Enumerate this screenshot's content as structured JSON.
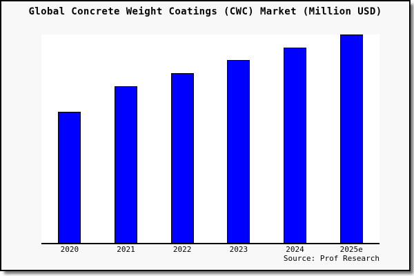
{
  "title": "Global Concrete Weight Coatings (CWC) Market (Million USD)",
  "source_note": "Source: Prof Research",
  "colors": {
    "frame_background": "#f8f8f8",
    "plot_background": "#ffffff",
    "bar_fill": "#0000ff",
    "bar_border": "#000000",
    "axis": "#000000",
    "text": "#000000"
  },
  "chart_data": {
    "type": "bar",
    "title": "Global Concrete Weight Coatings (CWC) Market (Million USD)",
    "unit": "Million USD",
    "categories": [
      "2020",
      "2021",
      "2022",
      "2023",
      "2024",
      "2025e"
    ],
    "values_relative": [
      0.628,
      0.751,
      0.815,
      0.878,
      0.937,
      1.0
    ],
    "xlabel": "",
    "ylabel": "",
    "y_axis_ticks": [],
    "ylim": [
      0,
      1.0
    ],
    "grid": false,
    "legend": false,
    "bar_color": "#0000ff",
    "source_note": "Source: Prof Research"
  }
}
